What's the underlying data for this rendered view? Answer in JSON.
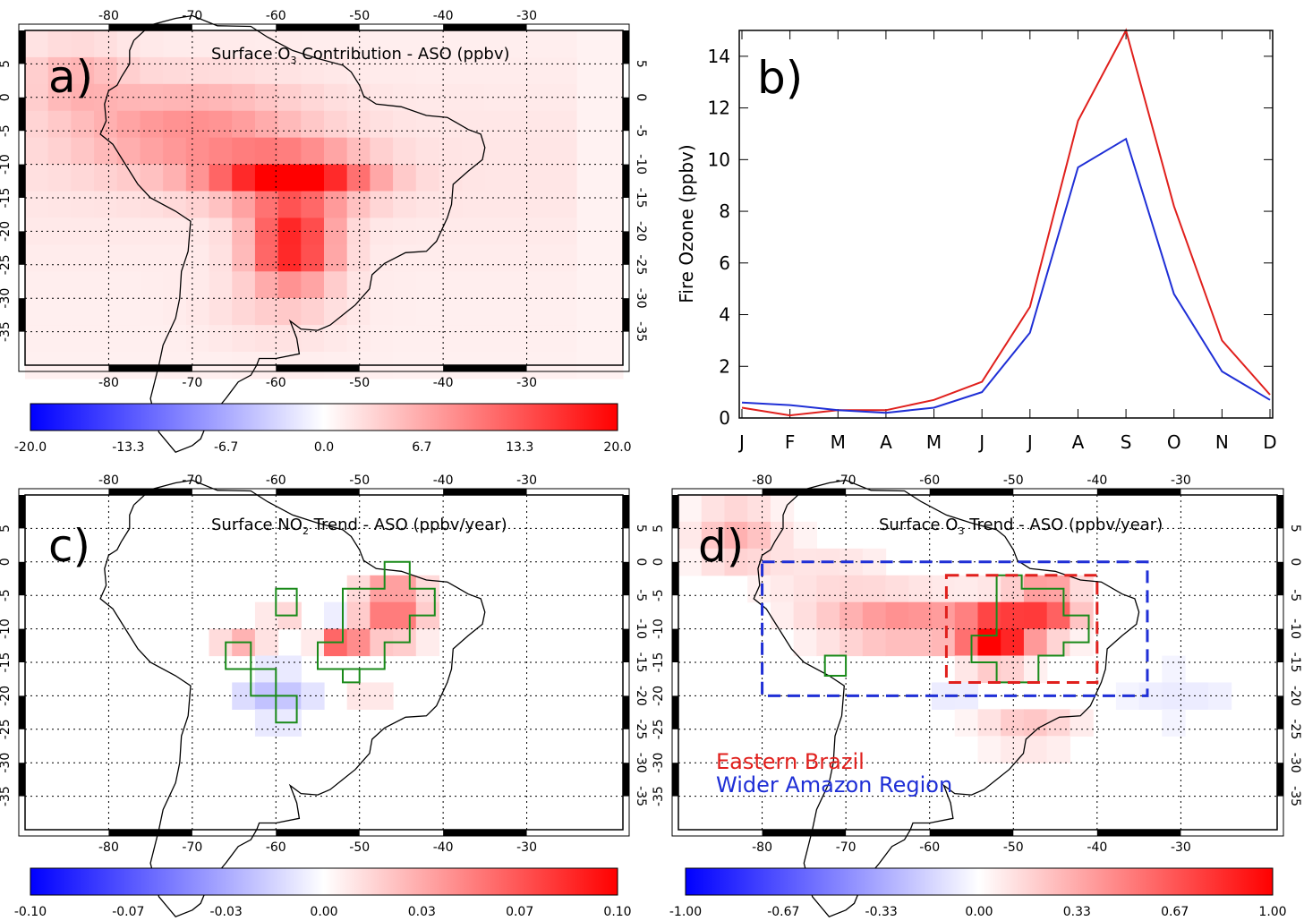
{
  "panels": {
    "a": {
      "label": "a)",
      "title_pre": "Surface O",
      "title_sub": "3",
      "title_post": " Contribution  -  ASO  (ppbv)",
      "lon_ticks": [
        "-80",
        "-70",
        "-60",
        "-50",
        "-40",
        "-30"
      ],
      "lat_ticks": [
        "5",
        "0",
        "-5",
        "-10",
        "-15",
        "-20",
        "-25",
        "-30",
        "-35"
      ],
      "colorbar": {
        "min": -20,
        "max": 20,
        "labels": [
          "-20.0",
          "-13.3",
          "-6.7",
          "0.0",
          "6.7",
          "13.3",
          "20.0"
        ]
      }
    },
    "c": {
      "label": "c)",
      "title_pre": "Surface NO",
      "title_sub": "2",
      "title_post": " Trend  -  ASO  (ppbv/year)",
      "lon_ticks": [
        "-80",
        "-70",
        "-60",
        "-50",
        "-40",
        "-30"
      ],
      "lat_ticks": [
        "5",
        "0",
        "-5",
        "-10",
        "-15",
        "-20",
        "-25",
        "-30",
        "-35"
      ],
      "colorbar": {
        "min": -0.1,
        "max": 0.1,
        "labels": [
          "-0.10",
          "-0.07",
          "-0.03",
          "0.00",
          "0.03",
          "0.07",
          "0.10"
        ]
      }
    },
    "d": {
      "label": "d)",
      "title_pre": "Surface O",
      "title_sub": "3",
      "title_post": " Trend  -  ASO  (ppbv/year)",
      "lon_ticks": [
        "-80",
        "-70",
        "-60",
        "-50",
        "-40",
        "-30"
      ],
      "lat_ticks": [
        "5",
        "0",
        "-5",
        "-10",
        "-15",
        "-20",
        "-25",
        "-30",
        "-35"
      ],
      "legend": [
        {
          "label": "Eastern Brazil",
          "color": "#e0201d"
        },
        {
          "label": "Wider Amazon Region",
          "color": "#1f2fd6"
        }
      ],
      "boxes": [
        {
          "name": "Wider Amazon Region",
          "color": "#1f2fd6",
          "lon": [
            -80,
            -34
          ],
          "lat": [
            0,
            -20
          ]
        },
        {
          "name": "Eastern Brazil",
          "color": "#e0201d",
          "lon": [
            -58,
            -40
          ],
          "lat": [
            -2,
            -18
          ]
        }
      ],
      "colorbar": {
        "min": -1,
        "max": 1,
        "labels": [
          "-1.00",
          "-0.67",
          "-0.33",
          "0.00",
          "0.33",
          "0.67",
          "1.00"
        ]
      }
    }
  },
  "colors": {
    "positive": "#ff0000",
    "negative": "#0000ff",
    "neutral": "#ffffff",
    "grid": "#000000"
  },
  "chart_data": {
    "type": "line",
    "label": "b)",
    "categories": [
      "J",
      "F",
      "M",
      "A",
      "M",
      "J",
      "J",
      "A",
      "S",
      "O",
      "N",
      "D"
    ],
    "ylabel": "Fire Ozone (ppbv)",
    "xlabel": "",
    "ylim": [
      0,
      15
    ],
    "yticks": [
      0,
      2,
      4,
      6,
      8,
      10,
      12,
      14
    ],
    "grid": true,
    "series": [
      {
        "color": "#e0201d",
        "values": [
          0.4,
          0.1,
          0.3,
          0.3,
          0.7,
          1.4,
          4.3,
          11.5,
          15.0,
          8.2,
          3.0,
          0.9
        ]
      },
      {
        "color": "#1f2fd6",
        "values": [
          0.6,
          0.5,
          0.3,
          0.2,
          0.4,
          1.0,
          3.3,
          9.7,
          10.8,
          4.8,
          1.8,
          0.7
        ]
      }
    ]
  }
}
